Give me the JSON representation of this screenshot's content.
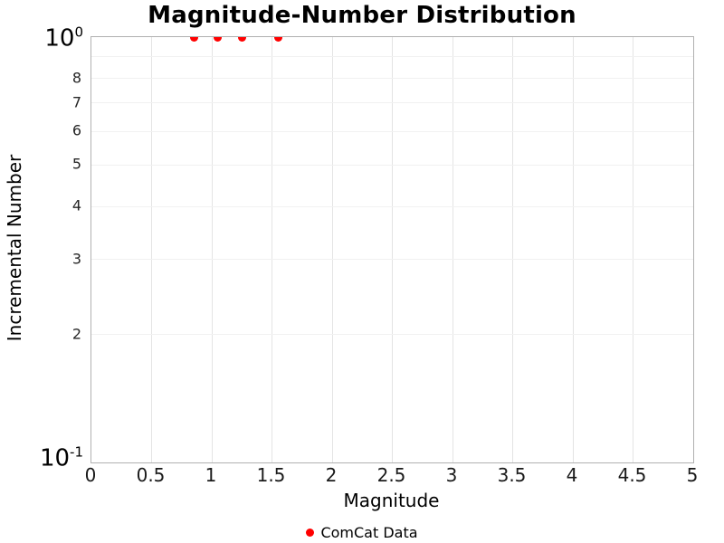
{
  "chart_data": {
    "type": "scatter",
    "title": "Magnitude-Number Distribution",
    "xlabel": "Magnitude",
    "ylabel": "Incremental Number",
    "xlim": [
      0,
      5
    ],
    "x_ticks": [
      0,
      0.5,
      1,
      1.5,
      2,
      2.5,
      3,
      3.5,
      4,
      4.5,
      5
    ],
    "x_tick_labels": [
      "0",
      "0.5",
      "1",
      "1.5",
      "2",
      "2.5",
      "3",
      "3.5",
      "4",
      "4.5",
      "5"
    ],
    "yscale": "log",
    "ylim": [
      0.1,
      1.0
    ],
    "y_major_ticks": [
      {
        "value": 1.0,
        "base": "10",
        "exponent": "0"
      },
      {
        "value": 0.1,
        "base": "10",
        "exponent": "-1"
      }
    ],
    "y_minor_ticks": [
      {
        "value": 0.8,
        "label": "8"
      },
      {
        "value": 0.7,
        "label": "7"
      },
      {
        "value": 0.6,
        "label": "6"
      },
      {
        "value": 0.5,
        "label": "5"
      },
      {
        "value": 0.4,
        "label": "4"
      },
      {
        "value": 0.3,
        "label": "3"
      },
      {
        "value": 0.2,
        "label": "2"
      }
    ],
    "y_grid_values": [
      0.9,
      0.8,
      0.7,
      0.6,
      0.5,
      0.4,
      0.3,
      0.2
    ],
    "grid": true,
    "legend_position": "bottom",
    "series": [
      {
        "name": "ComCat Data",
        "marker": "circle",
        "color": "#ff0000",
        "x": [
          0.85,
          1.05,
          1.25,
          1.55
        ],
        "y": [
          1,
          1,
          1,
          1
        ]
      }
    ]
  },
  "colors": {
    "plot_border": "#b0b0b0",
    "vertical_grid": "#e4e4e4",
    "horizontal_grid": "#f1f1f1",
    "marker": "#ff0000",
    "text": "#000000"
  }
}
